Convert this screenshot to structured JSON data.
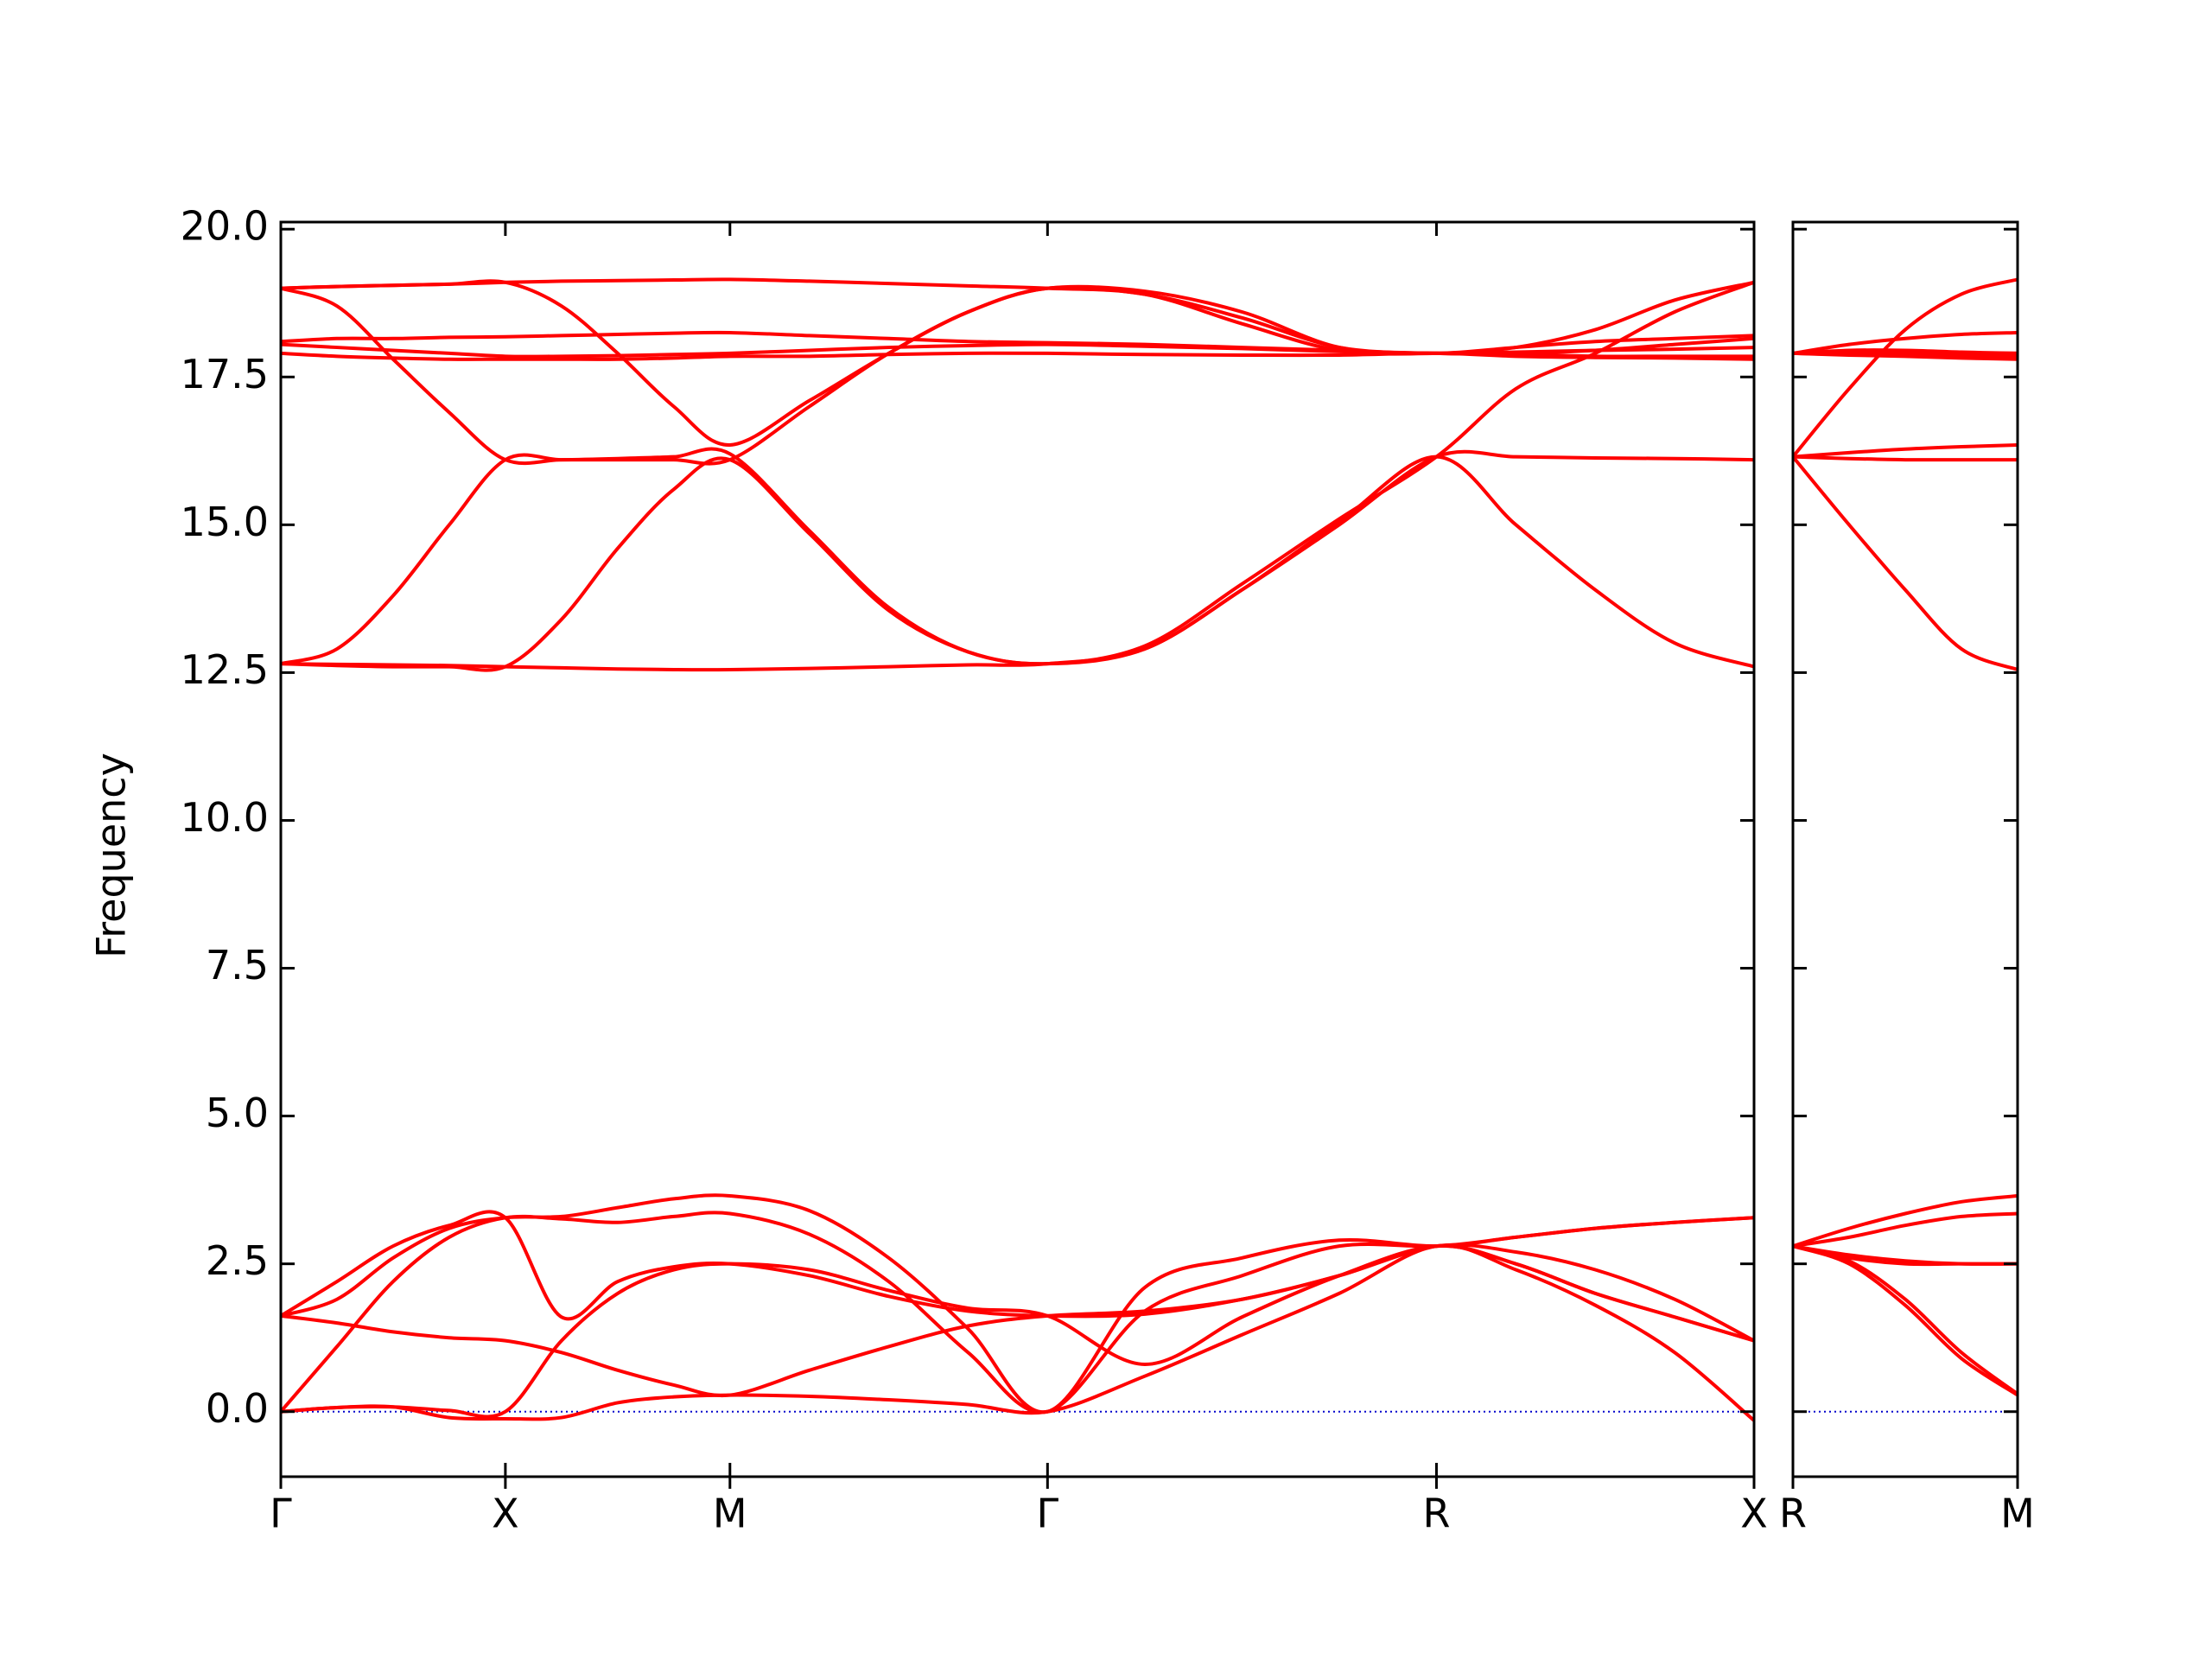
{
  "chart_data": [
    {
      "type": "line",
      "y_label": "Frequency",
      "color": "#ff0000",
      "zero_line": {
        "y": 0,
        "color": "#0000cc"
      },
      "xlim": [
        0,
        3.2802
      ],
      "ylim": [
        -1.1,
        20.12
      ],
      "xticks": [
        {
          "value": 0,
          "label": "Γ"
        },
        {
          "value": 0.5,
          "label": "X"
        },
        {
          "value": 1.0,
          "label": "M"
        },
        {
          "value": 1.7071,
          "label": "Γ"
        },
        {
          "value": 2.5731,
          "label": "R"
        },
        {
          "value": 3.2802,
          "label": "X"
        }
      ],
      "yticks": [
        {
          "value": 0,
          "label": "0.0"
        },
        2.5,
        {
          "value": 5,
          "label": "5.0"
        },
        7.5,
        {
          "value": 10,
          "label": "10.0"
        },
        12.5,
        {
          "value": 15,
          "label": "15.0"
        },
        17.5,
        {
          "value": 20,
          "label": "20.0"
        }
      ],
      "x": [
        0,
        0.125,
        0.25,
        0.375,
        0.5,
        0.625,
        0.75,
        0.875,
        1.0,
        1.1768,
        1.3536,
        1.5303,
        1.7071,
        1.9236,
        2.1401,
        2.3566,
        2.5731,
        2.7499,
        2.9266,
        3.1034,
        3.2802
      ],
      "series": [
        {
          "values": [
            0,
            0.07,
            0.08,
            -0.1,
            -0.12,
            -0.1,
            0.15,
            0.25,
            0.28,
            0.26,
            0.2,
            0.12,
            0,
            0.6,
            1.3,
            2.0,
            2.8,
            2.4,
            1.8,
            1.0,
            -0.15
          ]
        },
        {
          "values": [
            0,
            0.07,
            0.08,
            0.02,
            0,
            1.2,
            2.0,
            2.4,
            2.5,
            2.4,
            2.05,
            1.75,
            1.62,
            0.8,
            1.6,
            2.3,
            2.8,
            2.5,
            2.0,
            1.6,
            1.2
          ]
        },
        {
          "values": [
            0,
            1.1,
            2.2,
            2.95,
            3.28,
            3.26,
            3.2,
            3.3,
            3.35,
            3.0,
            2.2,
            1.0,
            0,
            1.7,
            2.3,
            2.8,
            2.8,
            2.95,
            3.1,
            3.2,
            3.28
          ]
        },
        {
          "values": [
            1.62,
            1.5,
            1.35,
            1.25,
            1.2,
            1.0,
            0.7,
            0.45,
            0.28,
            0.7,
            1.1,
            1.45,
            1.62,
            1.7,
            1.9,
            2.3,
            2.8,
            2.7,
            2.4,
            1.9,
            1.2
          ]
        },
        {
          "values": [
            1.62,
            1.9,
            2.6,
            3.1,
            3.28,
            3.3,
            3.45,
            3.6,
            3.65,
            3.4,
            2.6,
            1.4,
            0,
            2.1,
            2.6,
            2.9,
            2.8,
            2.95,
            3.1,
            3.2,
            3.28
          ]
        },
        {
          "values": [
            1.62,
            2.2,
            2.8,
            3.15,
            3.28,
            1.6,
            2.2,
            2.45,
            2.5,
            2.3,
            1.95,
            1.7,
            1.62,
            1.65,
            1.9,
            2.3,
            2.8,
            2.5,
            2.0,
            1.6,
            1.2
          ]
        },
        {
          "values": [
            12.65,
            12.64,
            12.63,
            12.62,
            12.6,
            12.58,
            12.56,
            12.55,
            12.55,
            12.57,
            12.6,
            12.63,
            12.65,
            12.9,
            13.9,
            15.0,
            16.15,
            16.15,
            16.13,
            16.12,
            16.1
          ]
        },
        {
          "values": [
            12.65,
            12.9,
            13.8,
            15.0,
            16.1,
            16.1,
            16.12,
            16.15,
            16.2,
            14.9,
            13.6,
            12.85,
            12.65,
            12.9,
            13.9,
            15.05,
            16.15,
            15.0,
            13.9,
            13.0,
            12.6
          ]
        },
        {
          "values": [
            12.65,
            12.62,
            12.6,
            12.6,
            12.6,
            13.4,
            14.6,
            15.6,
            16.1,
            14.85,
            13.55,
            12.85,
            12.65,
            12.95,
            14.0,
            15.1,
            16.15,
            17.3,
            17.9,
            18.6,
            19.1
          ]
        },
        {
          "values": [
            17.9,
            17.85,
            17.82,
            17.8,
            17.8,
            17.8,
            17.8,
            17.82,
            17.85,
            17.85,
            17.88,
            17.9,
            17.9,
            17.88,
            17.87,
            17.87,
            17.9,
            17.85,
            17.83,
            17.82,
            17.8
          ]
        },
        {
          "values": [
            19.0,
            18.7,
            17.8,
            16.9,
            16.1,
            16.1,
            16.1,
            16.1,
            16.1,
            17.0,
            17.9,
            18.6,
            19.0,
            18.95,
            18.6,
            18.0,
            17.9,
            17.9,
            17.95,
            18.05,
            18.15
          ]
        },
        {
          "values": [
            18.1,
            18.15,
            18.15,
            18.17,
            18.18,
            18.2,
            18.22,
            18.24,
            18.25,
            18.2,
            18.15,
            18.1,
            18.08,
            18.05,
            18.0,
            17.95,
            17.9,
            18.0,
            18.1,
            18.15,
            18.2
          ]
        },
        {
          "values": [
            19.0,
            19.03,
            19.05,
            19.07,
            19.1,
            18.7,
            17.9,
            17.0,
            16.35,
            17.1,
            17.9,
            18.6,
            19.0,
            18.9,
            18.5,
            18.0,
            17.9,
            17.92,
            17.95,
            17.97,
            18.0
          ]
        },
        {
          "values": [
            19.0,
            19.03,
            19.05,
            19.07,
            19.1,
            19.12,
            19.13,
            19.14,
            19.15,
            19.12,
            19.08,
            19.04,
            19.0,
            18.9,
            18.4,
            17.95,
            17.9,
            18.0,
            18.3,
            18.8,
            19.1
          ]
        },
        {
          "values": [
            18.05,
            18.0,
            17.95,
            17.9,
            17.85,
            17.85,
            17.86,
            17.88,
            17.9,
            17.95,
            18.0,
            18.03,
            18.05,
            18.02,
            17.98,
            17.93,
            17.9,
            17.88,
            17.85,
            17.85,
            17.85
          ]
        }
      ]
    },
    {
      "type": "line",
      "color": "#ff0000",
      "zero_line": {
        "y": 0,
        "color": "#0000cc"
      },
      "xlim": [
        3.2802,
        3.7802
      ],
      "ylim": [
        -1.1,
        20.12
      ],
      "xticks": [
        {
          "value": 3.2802,
          "label": "R"
        },
        {
          "value": 3.7802,
          "label": "M"
        }
      ],
      "x": [
        3.2802,
        3.4052,
        3.5302,
        3.6552,
        3.7802
      ],
      "series": [
        {
          "values": [
            2.8,
            2.5,
            1.8,
            0.9,
            0.28
          ]
        },
        {
          "values": [
            2.8,
            2.6,
            2.5,
            2.5,
            2.5
          ]
        },
        {
          "values": [
            2.8,
            2.65,
            2.55,
            2.5,
            2.5
          ]
        },
        {
          "values": [
            2.8,
            2.95,
            3.15,
            3.3,
            3.35
          ]
        },
        {
          "values": [
            2.8,
            3.1,
            3.35,
            3.55,
            3.65
          ]
        },
        {
          "values": [
            2.8,
            2.55,
            1.9,
            1.0,
            0.3
          ]
        },
        {
          "values": [
            16.15,
            15.0,
            13.9,
            12.9,
            12.55
          ]
        },
        {
          "values": [
            16.15,
            16.12,
            16.1,
            16.1,
            16.1
          ]
        },
        {
          "values": [
            16.15,
            16.22,
            16.28,
            16.32,
            16.35
          ]
        },
        {
          "values": [
            17.9,
            17.87,
            17.85,
            17.82,
            17.8
          ]
        },
        {
          "values": [
            17.9,
            17.88,
            17.87,
            17.86,
            17.85
          ]
        },
        {
          "values": [
            17.9,
            17.9,
            17.9,
            17.9,
            17.9
          ]
        },
        {
          "values": [
            17.9,
            18.05,
            18.15,
            18.22,
            18.25
          ]
        },
        {
          "values": [
            16.15,
            17.3,
            18.3,
            18.9,
            19.15
          ]
        },
        {
          "values": [
            17.9,
            17.95,
            17.95,
            17.92,
            17.9
          ]
        }
      ]
    }
  ]
}
